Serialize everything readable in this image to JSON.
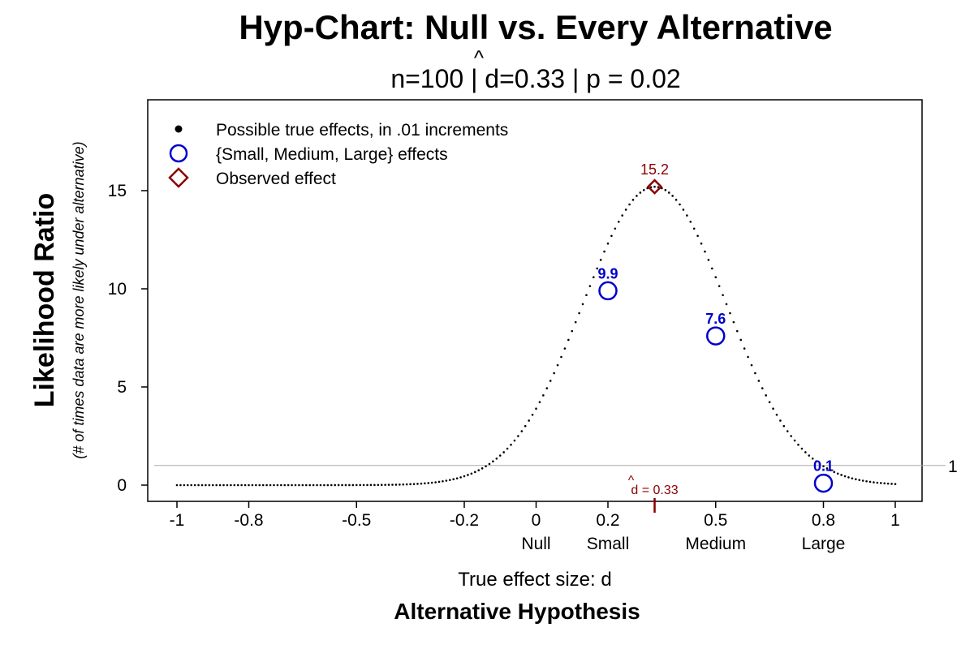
{
  "title": "Hyp-Chart: Null vs. Every Alternative",
  "subtitle": {
    "n_part": "n=100  |  ",
    "d_hat": "d",
    "hat_symbol": "^",
    "d_part": "=0.33  |  p = 0.02"
  },
  "legend": {
    "items": [
      {
        "label": "Possible true effects, in .01 increments",
        "symbol": "dot",
        "color": "#000000"
      },
      {
        "label": "{Small, Medium, Large} effects",
        "symbol": "circle",
        "color": "#0000cc"
      },
      {
        "label": "Observed effect",
        "symbol": "diamond",
        "color": "#8b0000"
      }
    ],
    "placement": "top-left"
  },
  "axes": {
    "ylabel": "Likelihood Ratio",
    "ysublabel": "(# of times data are more likely under alternative)",
    "xlabel": "True effect size: d",
    "xlabel2": "Alternative Hypothesis",
    "x_ticks": [
      "-1",
      "-0.8",
      "-0.5",
      "-0.2",
      "0",
      "0.2",
      "0.5",
      "0.8",
      "1"
    ],
    "y_ticks": [
      "0",
      "5",
      "10",
      "15"
    ],
    "x_categories": [
      "Null",
      "Small",
      "Medium",
      "Large"
    ],
    "ref_line_label": "1",
    "dhat_label": "d = 0.33",
    "dhat_hat": "^"
  },
  "chart_data": {
    "type": "scatter",
    "title": "Hyp-Chart: Null vs. Every Alternative",
    "xlabel": "True effect size: d",
    "ylabel": "Likelihood Ratio",
    "xlim": [
      -1,
      1
    ],
    "ylim": [
      0,
      19
    ],
    "x_ticks": [
      -1,
      -0.8,
      -0.5,
      -0.2,
      0,
      0.2,
      0.5,
      0.8,
      1
    ],
    "y_ticks": [
      0,
      5,
      10,
      15
    ],
    "x_categories": [
      {
        "x": 0,
        "label": "Null"
      },
      {
        "x": 0.2,
        "label": "Small"
      },
      {
        "x": 0.5,
        "label": "Medium"
      },
      {
        "x": 0.8,
        "label": "Large"
      }
    ],
    "curve": {
      "description": "Possible true effects, in .01 increments",
      "x_start": -1,
      "x_end": 1,
      "x_step": 0.01,
      "observed_d": 0.33,
      "peak_lr": 15.2,
      "n": 100
    },
    "highlighted": [
      {
        "x": 0.2,
        "y": 9.9,
        "label": "9.9"
      },
      {
        "x": 0.5,
        "y": 7.6,
        "label": "7.6"
      },
      {
        "x": 0.8,
        "y": 0.1,
        "label": "0.1"
      }
    ],
    "observed": {
      "x": 0.33,
      "y": 15.2,
      "label": "15.2"
    },
    "reference_line": {
      "y": 1,
      "label": "1"
    },
    "grid": false,
    "legend": "top-left"
  }
}
